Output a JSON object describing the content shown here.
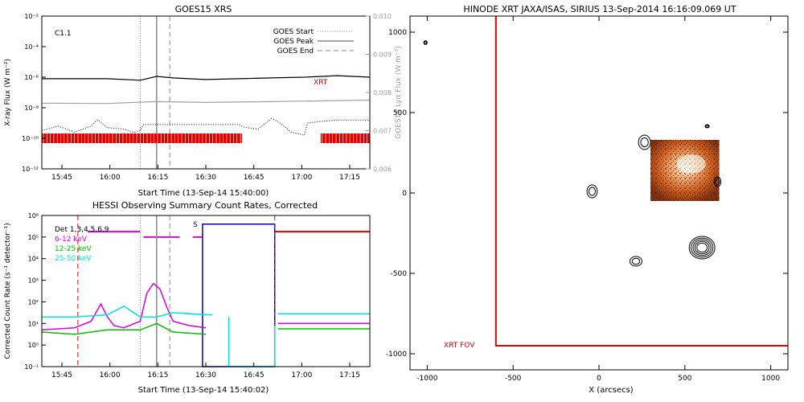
{
  "chart_data": [
    {
      "type": "line",
      "title": "GOES15 XRS",
      "xlabel": "Start Time (13-Sep-14 15:40:00)",
      "ylabel": "X-ray Flux (W m⁻²)",
      "ylabel_right": "GOES15 Lyα Flux (W m⁻²)",
      "x_ticks": [
        "15:45",
        "16:00",
        "16:15",
        "16:30",
        "16:45",
        "17:00",
        "17:15"
      ],
      "x_range_min": [
        0,
        100
      ],
      "y_scale": "log",
      "y_ticks": [
        "10⁻²",
        "10⁻⁴",
        "10⁻⁶",
        "10⁻⁸",
        "10⁻¹⁰",
        "10⁻¹²"
      ],
      "y_range_log": [
        -12,
        -2
      ],
      "y2_ticks": [
        "0.010",
        "0.009",
        "0.008",
        "0.007",
        "0.006"
      ],
      "y2_range": [
        0.006,
        0.01
      ],
      "flare_class": "C1.1",
      "legend": [
        {
          "label": "GOES Start",
          "style": "dotted"
        },
        {
          "label": "GOES Peak",
          "style": "solid"
        },
        {
          "label": "GOES End",
          "style": "dashed"
        }
      ],
      "xrt_label": "XRT",
      "event_times_min": {
        "start": 30.0,
        "peak": 35.0,
        "end": 39.0
      },
      "xrt_coverage_min": [
        [
          0,
          61
        ],
        [
          85,
          100
        ]
      ],
      "series": [
        {
          "name": "long",
          "color": "#000000",
          "x": [
            0,
            10,
            20,
            30,
            35,
            40,
            50,
            60,
            70,
            80,
            90,
            100
          ],
          "log_flux": [
            -6.1,
            -6.1,
            -6.1,
            -6.2,
            -5.95,
            -6.05,
            -6.15,
            -6.1,
            -6.05,
            -6.0,
            -5.9,
            -6.0
          ]
        },
        {
          "name": "lyman-alpha",
          "color": "#a0a0a0",
          "x": [
            0,
            20,
            35,
            50,
            70,
            100
          ],
          "log_flux": [
            -7.7,
            -7.72,
            -7.6,
            -7.65,
            -7.6,
            -7.5
          ]
        },
        {
          "name": "short",
          "color": "#000000",
          "style": "dotted",
          "x": [
            0,
            5,
            10,
            15,
            17,
            20,
            25,
            28,
            30,
            31,
            40,
            50,
            60,
            62,
            66,
            70,
            72,
            76,
            80,
            81,
            85,
            90,
            100
          ],
          "log_flux": [
            -9.5,
            -9.2,
            -9.6,
            -9.2,
            -8.8,
            -9.3,
            -9.4,
            -9.6,
            -9.5,
            -9.1,
            -9.1,
            -9.1,
            -9.1,
            -9.3,
            -9.4,
            -8.7,
            -8.9,
            -9.6,
            -9.8,
            -9.0,
            -8.9,
            -8.8,
            -8.8
          ]
        }
      ]
    },
    {
      "type": "line",
      "title": "HESSI Observing Summary Count Rates, Corrected",
      "xlabel": "Start Time (13-Sep-14 15:40:02)",
      "ylabel": "Corrected Count Rate (s⁻¹ detector⁻¹)",
      "x_ticks": [
        "15:45",
        "16:00",
        "16:15",
        "16:30",
        "16:45",
        "17:00",
        "17:15"
      ],
      "x_range_min": [
        0,
        100
      ],
      "y_scale": "log",
      "y_ticks": [
        "10⁶",
        "10⁵",
        "10⁴",
        "10³",
        "10²",
        "10¹",
        "10⁰",
        "10⁻¹"
      ],
      "y_range_log": [
        -1,
        6
      ],
      "legend": [
        {
          "label": "Det 1,3,4,5,6,9",
          "color": "#000000"
        },
        {
          "label": "6-12 keV",
          "color": "#e000e0"
        },
        {
          "label": "12-25 keV",
          "color": "#00c000"
        },
        {
          "label": "25-50 keV",
          "color": "#00e0e0"
        }
      ],
      "saa_label": "S",
      "series": [
        {
          "name": "6-12 keV",
          "color": "#e000e0",
          "x": [
            0,
            10,
            15,
            18,
            20,
            22,
            25,
            30,
            32,
            34,
            36,
            38,
            40,
            45,
            50
          ],
          "log_rate": [
            0.7,
            0.8,
            1.1,
            1.9,
            1.3,
            0.9,
            0.8,
            1.1,
            2.4,
            2.85,
            2.6,
            1.8,
            1.1,
            0.9,
            0.8
          ]
        },
        {
          "name": "12-25 keV",
          "color": "#00c000",
          "x": [
            0,
            10,
            20,
            30,
            35,
            40,
            50
          ],
          "log_rate": [
            0.6,
            0.5,
            0.7,
            0.7,
            1.0,
            0.6,
            0.5
          ]
        },
        {
          "name": "25-50 keV",
          "color": "#00e0e0",
          "x": [
            0,
            10,
            20,
            25,
            30,
            35,
            40,
            50,
            52
          ],
          "log_rate": [
            1.3,
            1.3,
            1.4,
            1.8,
            1.3,
            1.3,
            1.5,
            1.4,
            1.4
          ]
        }
      ]
    },
    {
      "type": "heatmap",
      "title": "HINODE XRT JAXA/ISAS, SIRIUS 13-Sep-2014 16:16:09.069 UT",
      "xlabel": "X (arcsecs)",
      "ylabel": "",
      "x_ticks": [
        "-1000",
        "-500",
        "0",
        "500",
        "1000"
      ],
      "y_ticks": [
        "1000",
        "500",
        "0",
        "-500",
        "-1000"
      ],
      "xlim": [
        -1100,
        1100
      ],
      "ylim": [
        -1100,
        1100
      ],
      "fov_label": "XRT FOV",
      "fov": {
        "x_min": -600,
        "x_max": 1100,
        "y_min": -950,
        "y_max": 1100
      },
      "image_extent": {
        "x": [
          300,
          700
        ],
        "y": [
          -50,
          330
        ]
      },
      "contours": [
        {
          "x": -1010,
          "y": 935,
          "rx": 10,
          "ry": 12
        },
        {
          "x": 630,
          "y": 415,
          "rx": 12,
          "ry": 10
        },
        {
          "x": 265,
          "y": 315,
          "rx": 35,
          "ry": 45
        },
        {
          "x": 690,
          "y": 70,
          "rx": 20,
          "ry": 30
        },
        {
          "x": -40,
          "y": 10,
          "rx": 30,
          "ry": 40
        },
        {
          "x": 600,
          "y": -340,
          "rx": 75,
          "ry": 70
        },
        {
          "x": 215,
          "y": -425,
          "rx": 35,
          "ry": 30
        }
      ]
    }
  ]
}
